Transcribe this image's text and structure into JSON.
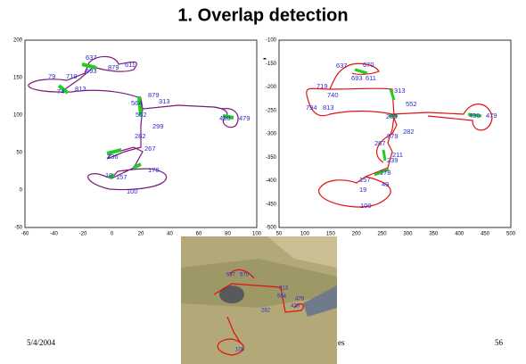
{
  "title": "1. Overlap detection",
  "footer": {
    "date": "5/4/2004",
    "center": "es",
    "page": "56"
  },
  "plot_left": {
    "xticks": [
      "-60",
      "-40",
      "-20",
      "0",
      "20",
      "40",
      "60",
      "80",
      "100"
    ],
    "yticks": [
      "-50",
      "0",
      "50",
      "100",
      "150",
      "200"
    ],
    "labels": [
      "637",
      "611",
      "693",
      "879",
      "719",
      "79",
      "813",
      "74",
      "879",
      "564",
      "313",
      "552",
      "480",
      "479",
      "299",
      "282",
      "267",
      "236",
      "178",
      "157",
      "10",
      "100"
    ]
  },
  "plot_right": {
    "xticks": [
      "50",
      "100",
      "150",
      "200",
      "250",
      "300",
      "350",
      "400",
      "450",
      "500"
    ],
    "yticks": [
      "-100",
      "-150",
      "-200",
      "-250",
      "-300",
      "-350",
      "-400",
      "-450",
      "-500"
    ],
    "labels": [
      "637",
      "670",
      "693",
      "611",
      "719",
      "740",
      "794",
      "813",
      "313",
      "552",
      "289",
      "430",
      "479",
      "879",
      "282",
      "267",
      "211",
      "239",
      "178",
      "157",
      "49",
      "19",
      "100"
    ]
  },
  "map": {
    "labels": [
      "637",
      "570",
      "313",
      "564",
      "479",
      "430",
      "282",
      "100"
    ]
  }
}
